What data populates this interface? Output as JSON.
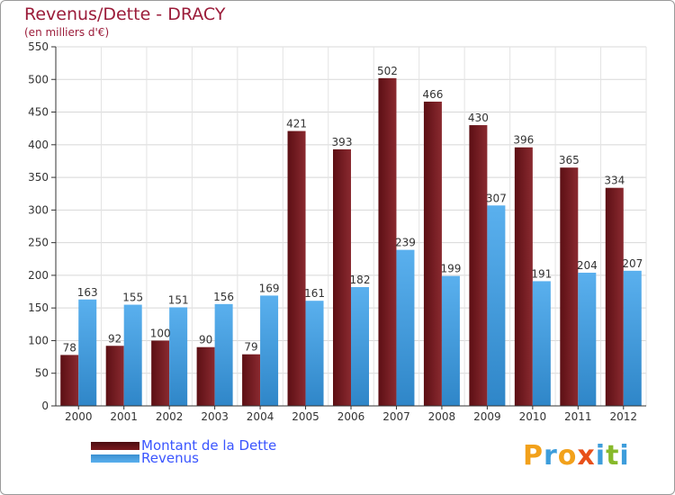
{
  "chart_data": {
    "type": "bar",
    "title": "Revenus/Dette - DRACY",
    "subtitle": "(en milliers d'€)",
    "categories": [
      "2000",
      "2001",
      "2002",
      "2003",
      "2004",
      "2005",
      "2006",
      "2007",
      "2008",
      "2009",
      "2010",
      "2011",
      "2012"
    ],
    "series": [
      {
        "name": "Montant de la Dette",
        "color": "#7a1a1f",
        "values": [
          78,
          92,
          100,
          90,
          79,
          421,
          393,
          502,
          466,
          430,
          396,
          365,
          334
        ]
      },
      {
        "name": "Revenus",
        "color": "#4ba3e4",
        "values": [
          163,
          155,
          151,
          156,
          169,
          161,
          182,
          239,
          199,
          307,
          191,
          204,
          207
        ]
      }
    ],
    "ylim": [
      0,
      550
    ],
    "yticks": [
      0,
      50,
      100,
      150,
      200,
      250,
      300,
      350,
      400,
      450,
      500,
      550
    ],
    "grid": true,
    "legend": "bottom-left"
  },
  "logo": {
    "text": "Proxiti",
    "colors": [
      "#f2a11b",
      "#3d9ddb",
      "#f2a11b",
      "#e8501a",
      "#3d9ddb",
      "#87b92a",
      "#3d9ddb"
    ]
  }
}
